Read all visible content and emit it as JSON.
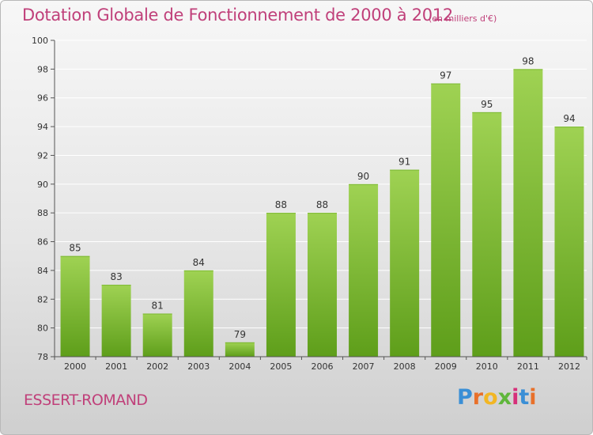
{
  "title": "Dotation Globale de Fonctionnement de 2000 à 2012",
  "subtitle": "(en milliers d'€)",
  "commune": "ESSERT-ROMAND",
  "logo": {
    "letters": [
      "P",
      "r",
      "o",
      "x",
      "i",
      "t",
      "i"
    ],
    "colors": [
      "#3a8fd6",
      "#e8702a",
      "#f2b623",
      "#5fb63b",
      "#d6307a",
      "#3a8fd6",
      "#e8702a"
    ]
  },
  "colors": {
    "bar_top": "#9fd253",
    "bar_bottom": "#5e9e1a",
    "text": "#c0407a",
    "axis": "#555555",
    "grid": "#ffffff"
  },
  "chart_data": {
    "type": "bar",
    "categories": [
      "2000",
      "2001",
      "2002",
      "2003",
      "2004",
      "2005",
      "2006",
      "2007",
      "2008",
      "2009",
      "2010",
      "2011",
      "2012"
    ],
    "values": [
      85,
      83,
      81,
      84,
      79,
      88,
      88,
      90,
      91,
      97,
      95,
      98,
      94
    ],
    "title": "Dotation Globale de Fonctionnement de 2000 à 2012",
    "ylim": [
      78,
      100
    ],
    "yticks": [
      78,
      80,
      82,
      84,
      86,
      88,
      90,
      92,
      94,
      96,
      98,
      100
    ],
    "grid": true
  }
}
